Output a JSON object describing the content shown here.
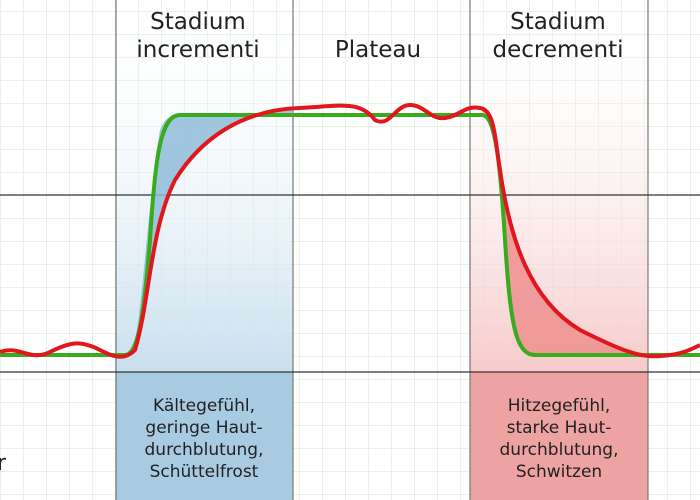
{
  "phases": [
    {
      "lines": [
        "Stadium",
        "incrementi"
      ]
    },
    {
      "lines": [
        "Plateau"
      ]
    },
    {
      "lines": [
        "Stadium",
        "decrementi"
      ]
    }
  ],
  "notes": [
    {
      "lines": [
        "Kältegefühl,",
        "geringe Haut-",
        "durchblutung,",
        "Schüttelfrost"
      ]
    },
    {
      "lines": [
        "Hitzegefühl,",
        "starke Haut-",
        "durchblutung,",
        "Schwitzen"
      ]
    }
  ],
  "edge_label": "r"
}
